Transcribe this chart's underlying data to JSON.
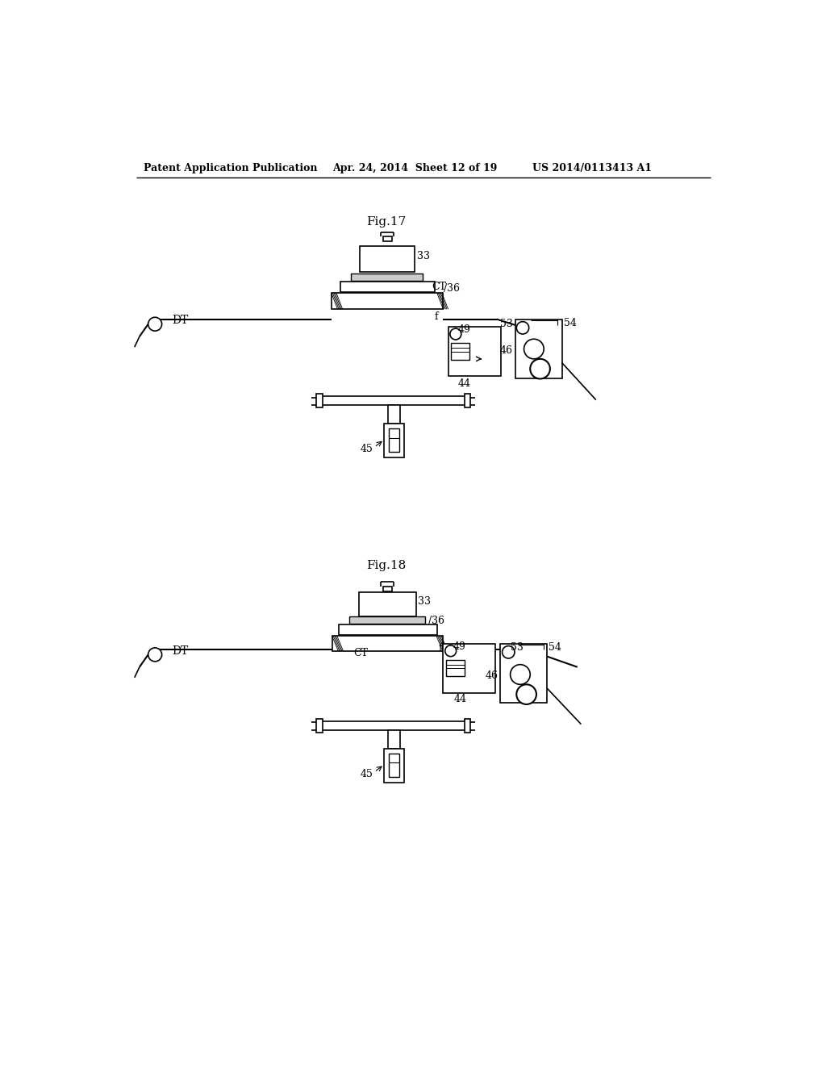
{
  "background_color": "#ffffff",
  "header_left": "Patent Application Publication",
  "header_center": "Apr. 24, 2014  Sheet 12 of 19",
  "header_right": "US 2014/0113413 A1",
  "fig17_title": "Fig.17",
  "fig18_title": "Fig.18"
}
